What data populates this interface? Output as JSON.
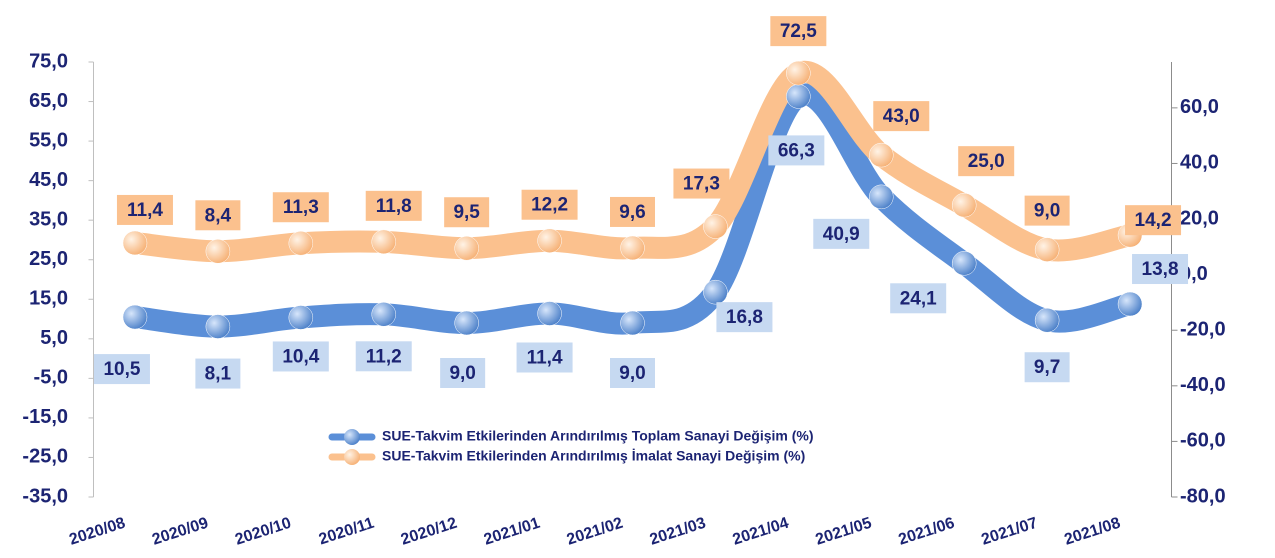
{
  "chart_data": {
    "type": "line",
    "categories": [
      "2020/08",
      "2020/09",
      "2020/10",
      "2020/11",
      "2020/12",
      "2021/01",
      "2021/02",
      "2021/03",
      "2021/04",
      "2021/05",
      "2021/06",
      "2021/07",
      "2021/08"
    ],
    "series": [
      {
        "name": "SUE-Takvim Etkilerinden Arındırılmış Toplam Sanayi Değişim (%)",
        "color": "#5b8fd8",
        "label_bg": "#c6d9f1",
        "values": [
          10.5,
          8.1,
          10.4,
          11.2,
          9.0,
          11.4,
          9.0,
          16.8,
          66.3,
          40.9,
          24.1,
          9.7,
          13.8
        ],
        "value_labels": [
          "10,5",
          "8,1",
          "10,4",
          "11,2",
          "9,0",
          "11,4",
          "9,0",
          "16,8",
          "66,3",
          "40,9",
          "24,1",
          "9,7",
          "13,8"
        ]
      },
      {
        "name": "SUE-Takvim Etkilerinden Arındırılmış İmalat Sanayi Değişim (%)",
        "color": "#fbc18e",
        "label_bg": "#fbc18e",
        "axis": "y2",
        "values": [
          11.4,
          8.4,
          11.3,
          11.8,
          9.5,
          12.2,
          9.6,
          17.3,
          72.5,
          43.0,
          25.0,
          9.0,
          14.2
        ],
        "value_labels": [
          "11,4",
          "8,4",
          "11,3",
          "11,8",
          "9,5",
          "12,2",
          "9,6",
          "17,3",
          "72,5",
          "43,0",
          "25,0",
          "9,0",
          "14,2"
        ]
      }
    ],
    "ylim": [
      -35,
      75
    ],
    "yticks": [
      {
        "value": -35,
        "label": "-35,0"
      },
      {
        "value": -25,
        "label": "-25,0"
      },
      {
        "value": -15,
        "label": "-15,0"
      },
      {
        "value": -5,
        "label": "-5,0"
      },
      {
        "value": 5,
        "label": "5,0"
      },
      {
        "value": 15,
        "label": "15,0"
      },
      {
        "value": 25,
        "label": "25,0"
      },
      {
        "value": 35,
        "label": "35,0"
      },
      {
        "value": 45,
        "label": "45,0"
      },
      {
        "value": 55,
        "label": "55,0"
      },
      {
        "value": 65,
        "label": "65,0"
      },
      {
        "value": 75,
        "label": "75,0"
      }
    ],
    "y2lim": [
      -80,
      76.5
    ],
    "y2ticks": [
      {
        "value": -80,
        "label": "-80,0"
      },
      {
        "value": -60,
        "label": "-60,0"
      },
      {
        "value": -40,
        "label": "-40,0"
      },
      {
        "value": -20,
        "label": "-20,0"
      },
      {
        "value": 0,
        "label": "0,0"
      },
      {
        "value": 20,
        "label": "20,0"
      },
      {
        "value": 40,
        "label": "40,0"
      },
      {
        "value": 60,
        "label": "60,0"
      }
    ]
  }
}
